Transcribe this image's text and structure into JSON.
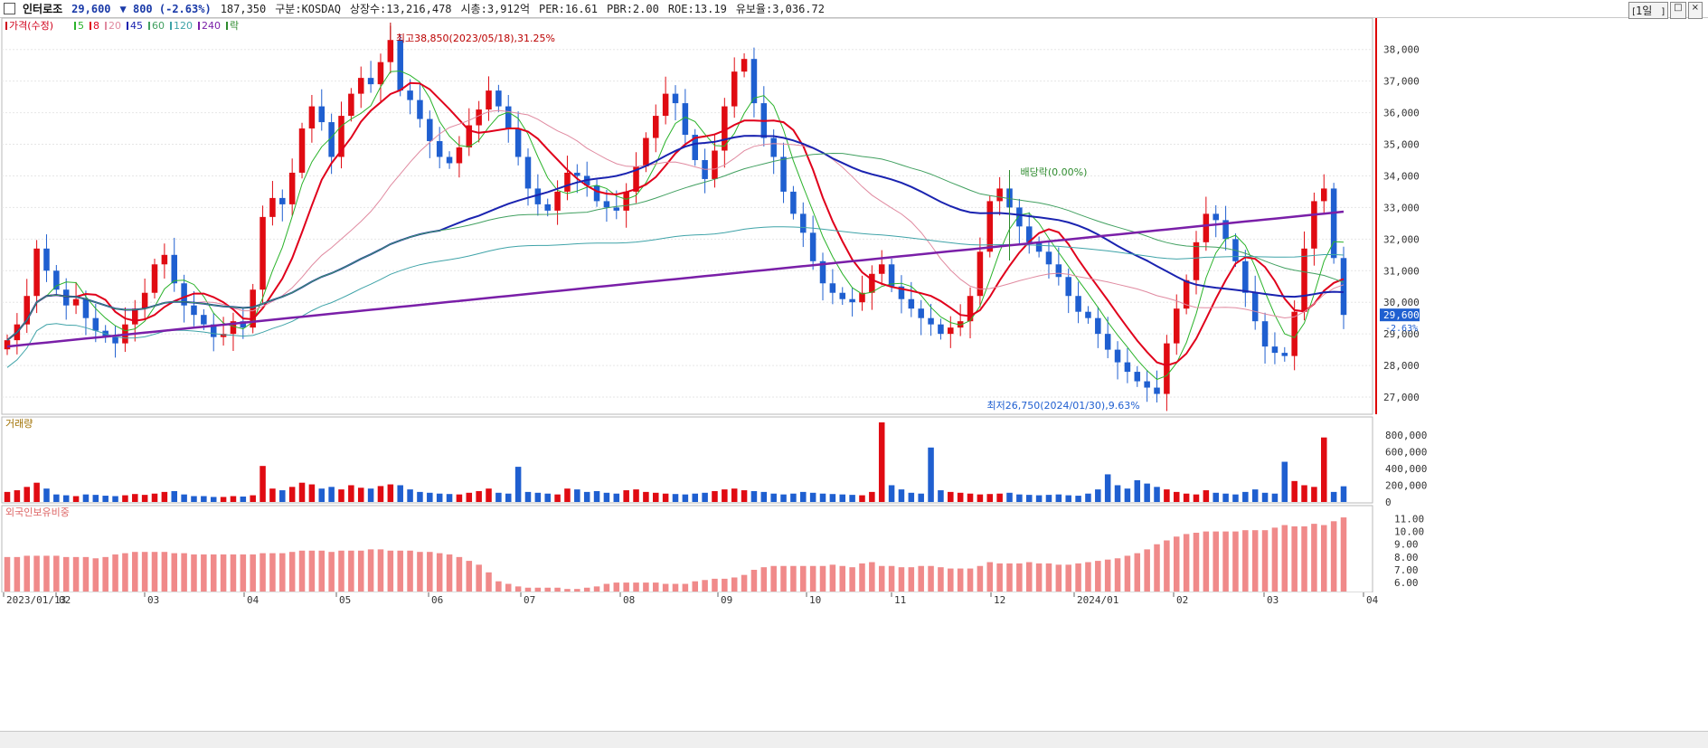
{
  "header": {
    "name": "인터로조",
    "price": "29,600",
    "change": "▼ 800 (-2.63%)",
    "volume": "187,350",
    "market": "구분:KOSDAQ",
    "shares": "상장수:13,216,478",
    "mcap": "시총:3,912억",
    "per": "PER:16.61",
    "pbr": "PBR:2.00",
    "roe": "ROE:13.19",
    "float": "유보율:3,036.72",
    "period_button": "1일"
  },
  "chart_data": [
    {
      "type": "candlestick",
      "title": "",
      "legend": [
        {
          "label": "가격(수정)",
          "color": "#d0021b"
        },
        {
          "label": "5",
          "color": "#2bb32b"
        },
        {
          "label": "8",
          "color": "#e0001b"
        },
        {
          "label": "20",
          "color": "#e08aa0"
        },
        {
          "label": "45",
          "color": "#1a23b0"
        },
        {
          "label": "60",
          "color": "#41a060"
        },
        {
          "label": "120",
          "color": "#3fa3a8"
        },
        {
          "label": "240",
          "color": "#7a1fa8"
        },
        {
          "label": "락",
          "color": "#2e8b2e"
        }
      ],
      "y_ticks": [
        "38,000",
        "37,000",
        "36,000",
        "35,000",
        "34,000",
        "33,000",
        "32,000",
        "31,000",
        "30,000",
        "29,000",
        "28,000",
        "27,000"
      ],
      "ylim": [
        26600,
        38850
      ],
      "x_ticks": [
        "2023/01/13",
        "02",
        "03",
        "04",
        "05",
        "06",
        "07",
        "08",
        "09",
        "10",
        "11",
        "12",
        "2024/01",
        "02",
        "03",
        "04"
      ],
      "annotations": [
        {
          "text": "최고38,850(2023/05/18),31.25%",
          "value": 38850
        },
        {
          "text": "최저26,750(2024/01/30),9.63%",
          "value": 26750
        },
        {
          "text": "배당락(0.00%)"
        }
      ],
      "last_price_label": "29,600",
      "last_change_label": "-2.63%",
      "price_series_approx": [
        28800,
        29300,
        30200,
        31700,
        31000,
        30400,
        29900,
        30100,
        29500,
        29100,
        28900,
        28700,
        29300,
        29800,
        30300,
        31200,
        31500,
        30600,
        29900,
        29600,
        29300,
        28900,
        29000,
        29400,
        29200,
        30400,
        32700,
        33300,
        33100,
        34100,
        35500,
        36200,
        35700,
        34600,
        35900,
        36600,
        37100,
        36900,
        37600,
        38300,
        36700,
        36400,
        35800,
        35100,
        34600,
        34400,
        34900,
        35600,
        36100,
        36700,
        36200,
        35500,
        34600,
        33600,
        33100,
        32900,
        33500,
        34100,
        34000,
        33700,
        33200,
        33000,
        32900,
        33500,
        34300,
        35200,
        35900,
        36600,
        36300,
        35300,
        34500,
        33900,
        34800,
        36200,
        37300,
        37700,
        36300,
        35200,
        34600,
        33500,
        32800,
        32200,
        31300,
        30600,
        30300,
        30100,
        30000,
        30300,
        30900,
        31200,
        30500,
        30100,
        29800,
        29500,
        29300,
        29000,
        29200,
        29400,
        30200,
        31600,
        33200,
        33600,
        33000,
        32400,
        31900,
        31600,
        31200,
        30800,
        30200,
        29700,
        29500,
        29000,
        28500,
        28100,
        27800,
        27500,
        27300,
        27100,
        28700,
        29800,
        30700,
        31900,
        32800,
        32600,
        32000,
        31300,
        30300,
        29400,
        28600,
        28400,
        28300,
        29700,
        31700,
        33200,
        33600,
        31400,
        29600
      ],
      "indicators": [
        "MA5",
        "MA8",
        "MA20",
        "MA45",
        "MA60",
        "MA120",
        "MA240"
      ]
    },
    {
      "type": "bar",
      "title": "거래량",
      "y_ticks": [
        "800,000",
        "600,000",
        "400,000",
        "200,000",
        "0"
      ],
      "ylim": [
        0,
        950000
      ],
      "values_approx": [
        120000,
        140000,
        180000,
        230000,
        160000,
        90000,
        80000,
        70000,
        90000,
        85000,
        75000,
        70000,
        80000,
        95000,
        85000,
        100000,
        120000,
        130000,
        90000,
        70000,
        70000,
        60000,
        60000,
        70000,
        65000,
        80000,
        430000,
        160000,
        140000,
        180000,
        230000,
        210000,
        160000,
        180000,
        150000,
        200000,
        170000,
        160000,
        190000,
        210000,
        200000,
        150000,
        120000,
        110000,
        100000,
        95000,
        90000,
        110000,
        130000,
        160000,
        110000,
        100000,
        420000,
        120000,
        110000,
        100000,
        90000,
        160000,
        150000,
        120000,
        130000,
        110000,
        100000,
        140000,
        150000,
        120000,
        110000,
        100000,
        95000,
        90000,
        100000,
        110000,
        130000,
        150000,
        160000,
        140000,
        130000,
        120000,
        100000,
        90000,
        100000,
        120000,
        110000,
        100000,
        95000,
        90000,
        85000,
        80000,
        120000,
        950000,
        200000,
        150000,
        110000,
        100000,
        650000,
        140000,
        120000,
        110000,
        100000,
        90000,
        95000,
        100000,
        110000,
        90000,
        85000,
        80000,
        85000,
        90000,
        80000,
        75000,
        100000,
        150000,
        330000,
        200000,
        160000,
        260000,
        220000,
        180000,
        150000,
        120000,
        100000,
        90000,
        140000,
        110000,
        100000,
        90000,
        120000,
        150000,
        110000,
        100000,
        480000,
        250000,
        200000,
        180000,
        770000,
        120000,
        187350
      ]
    },
    {
      "type": "bar",
      "title": "외국인보유비중",
      "y_ticks": [
        "11.00",
        "10.00",
        "9.00",
        "8.00",
        "7.00",
        "6.00"
      ],
      "ylim": [
        5.3,
        11.6
      ],
      "values_approx": [
        8.0,
        8.0,
        8.1,
        8.1,
        8.1,
        8.1,
        8.0,
        8.0,
        8.0,
        7.9,
        8.0,
        8.2,
        8.3,
        8.4,
        8.4,
        8.4,
        8.4,
        8.3,
        8.3,
        8.2,
        8.2,
        8.2,
        8.2,
        8.2,
        8.2,
        8.2,
        8.3,
        8.3,
        8.3,
        8.4,
        8.5,
        8.5,
        8.5,
        8.4,
        8.5,
        8.5,
        8.5,
        8.6,
        8.6,
        8.5,
        8.5,
        8.5,
        8.4,
        8.4,
        8.3,
        8.2,
        8.0,
        7.7,
        7.4,
        6.8,
        6.1,
        5.9,
        5.7,
        5.6,
        5.6,
        5.6,
        5.6,
        5.5,
        5.5,
        5.6,
        5.7,
        5.9,
        6.0,
        6.0,
        6.0,
        6.0,
        6.0,
        5.9,
        5.9,
        5.9,
        6.1,
        6.2,
        6.3,
        6.3,
        6.4,
        6.6,
        7.0,
        7.2,
        7.3,
        7.3,
        7.3,
        7.3,
        7.3,
        7.3,
        7.4,
        7.3,
        7.2,
        7.5,
        7.6,
        7.3,
        7.3,
        7.2,
        7.2,
        7.3,
        7.3,
        7.2,
        7.1,
        7.1,
        7.1,
        7.3,
        7.6,
        7.5,
        7.5,
        7.5,
        7.6,
        7.5,
        7.5,
        7.4,
        7.4,
        7.5,
        7.6,
        7.7,
        7.8,
        7.9,
        8.1,
        8.3,
        8.6,
        9.0,
        9.3,
        9.6,
        9.8,
        9.9,
        10.0,
        10.0,
        10.0,
        10.0,
        10.1,
        10.1,
        10.1,
        10.3,
        10.5,
        10.4,
        10.4,
        10.6,
        10.5,
        10.8,
        11.1
      ]
    }
  ]
}
